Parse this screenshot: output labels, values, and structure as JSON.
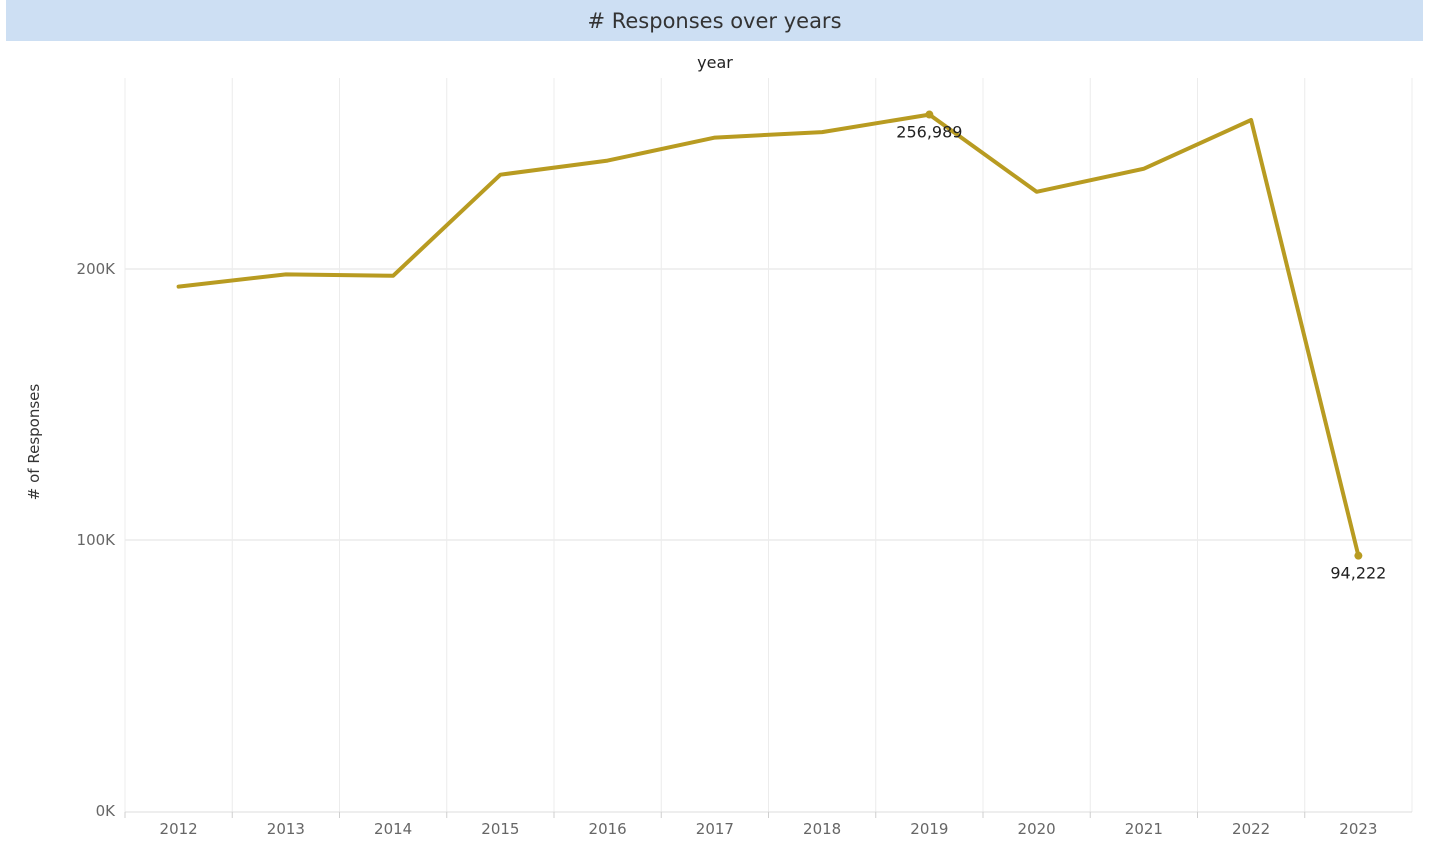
{
  "title": "# Responses over years",
  "chart_data": {
    "type": "line",
    "title": "# Responses over years",
    "xlabel": "year",
    "ylabel": "# of Responses",
    "x": [
      "2012",
      "2013",
      "2014",
      "2015",
      "2016",
      "2017",
      "2018",
      "2019",
      "2020",
      "2021",
      "2022",
      "2023"
    ],
    "series": [
      {
        "values": [
          193500,
          198000,
          197500,
          234800,
          240000,
          248500,
          250500,
          256989,
          228500,
          237000,
          255000,
          94222
        ],
        "color": "#b89b21"
      }
    ],
    "y_ticks": [
      {
        "value": 0,
        "label": "0K"
      },
      {
        "value": 100000,
        "label": "100K"
      },
      {
        "value": 200000,
        "label": "200K"
      }
    ],
    "ylim": [
      0,
      275000
    ],
    "grid": true,
    "annotations": [
      {
        "x": "2019",
        "value": 256989,
        "label": "256,989"
      },
      {
        "x": "2023",
        "value": 94222,
        "label": "94,222"
      }
    ]
  }
}
